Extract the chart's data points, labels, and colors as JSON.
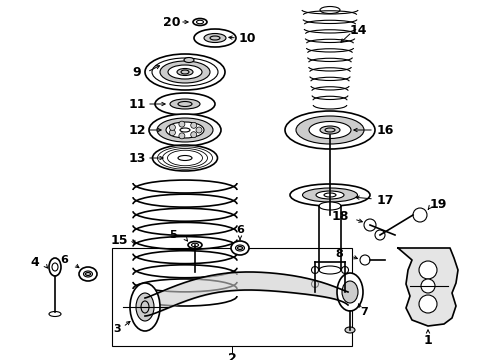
{
  "background_color": "#ffffff",
  "fig_width": 4.9,
  "fig_height": 3.6,
  "dpi": 100
}
